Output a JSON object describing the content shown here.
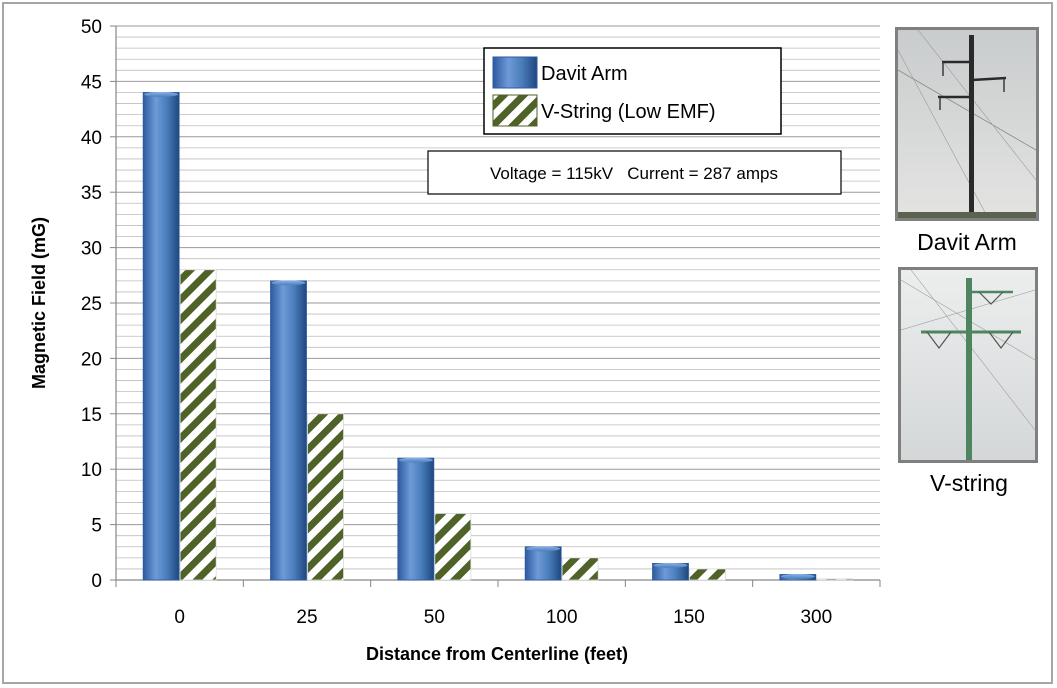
{
  "chart_data": {
    "type": "bar",
    "xlabel": "Distance from Centerline (feet)",
    "ylabel": "Magnetic Field (mG)",
    "categories": [
      "0",
      "25",
      "50",
      "100",
      "150",
      "300"
    ],
    "ylim": [
      0,
      50
    ],
    "yticks": [
      "0",
      "5",
      "10",
      "15",
      "20",
      "25",
      "30",
      "35",
      "40",
      "45",
      "50"
    ],
    "grid": true,
    "legend_position": "top-right",
    "annotation": "Voltage = 115kV   Current = 287 amps",
    "series": [
      {
        "name": "Davit Arm",
        "values": [
          44,
          27,
          11,
          3,
          1.5,
          0.5
        ],
        "color": "#4a7ebb",
        "style": "gradient-3d"
      },
      {
        "name": "V-String (Low EMF)",
        "values": [
          28,
          15,
          6,
          2,
          1,
          0.1
        ],
        "color": "#4f6228",
        "style": "diagonal-stripes"
      }
    ]
  },
  "photos": {
    "davit": {
      "caption": "Davit Arm"
    },
    "vstring": {
      "caption": "V-string"
    }
  }
}
